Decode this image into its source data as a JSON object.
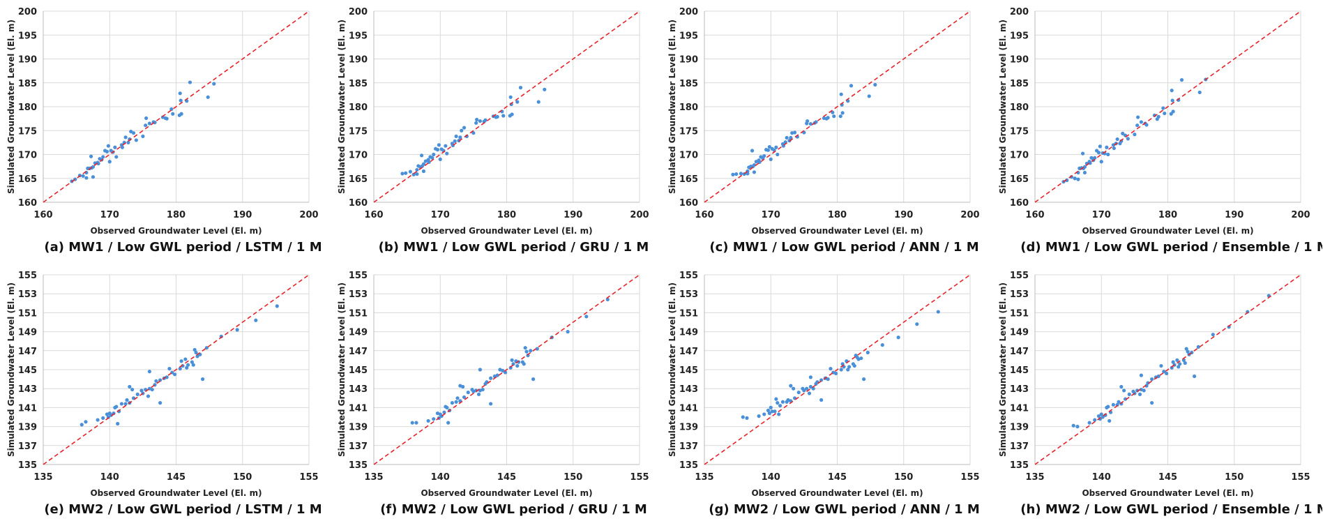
{
  "colors": {
    "points": "#4a90d9",
    "line": "#e8222a",
    "grid": "#d9d9d9"
  },
  "chart_data": [
    {
      "type": "scatter",
      "caption": "(a) MW1 / Low GWL period / LSTM / 1 M",
      "xlabel": "Observed Groundwater Level (El. m)",
      "ylabel": "Simulated Groundwater Level (El. m)",
      "xlim": [
        160,
        200
      ],
      "ylim": [
        160,
        200
      ],
      "xticks": [
        160,
        170,
        180,
        190,
        200
      ],
      "yticks": [
        160,
        165,
        170,
        175,
        180,
        185,
        190,
        195,
        200
      ],
      "reference_line": "1:1 dashed",
      "grid": true,
      "well": "MW1",
      "simulated": [
        164.4,
        164.8,
        165.6,
        165.5,
        166.2,
        165.1,
        167.1,
        167.1,
        169.6,
        167.2,
        167.4,
        165.3,
        168.2,
        168.3,
        168.1,
        169.1,
        168.9,
        169.5,
        170.8,
        170.6,
        171.8,
        168.5,
        170.8,
        170.5,
        171.5,
        169.5,
        172.0,
        171.5,
        172.5,
        173.6,
        172.5,
        173.2,
        174.8,
        174.5,
        173.0,
        173.8,
        176.1,
        177.6,
        176.5,
        176.8,
        176.7,
        177.8,
        177.6,
        177.5,
        179.5,
        178.5,
        178.2,
        182.8,
        181.3,
        178.5,
        181.2,
        185.1,
        182.0,
        184.8
      ]
    },
    {
      "type": "scatter",
      "caption": "(b) MW1 / Low GWL period / GRU / 1 M",
      "xlabel": "Observed Groundwater Level (El. m)",
      "ylabel": "Simulated Groundwater Level (El. m)",
      "xlim": [
        160,
        200
      ],
      "ylim": [
        160,
        200
      ],
      "xticks": [
        160,
        170,
        180,
        190,
        200
      ],
      "yticks": [
        160,
        165,
        170,
        175,
        180,
        185,
        190,
        195,
        200
      ],
      "reference_line": "1:1 dashed",
      "grid": true,
      "well": "MW1",
      "simulated": [
        166.0,
        166.1,
        166.4,
        165.8,
        166.8,
        165.9,
        167.6,
        167.4,
        169.8,
        167.6,
        168.0,
        166.5,
        168.6,
        168.9,
        168.4,
        169.5,
        169.3,
        170.0,
        171.2,
        171.0,
        172.0,
        169.0,
        171.1,
        170.8,
        171.8,
        170.2,
        172.3,
        171.9,
        172.8,
        173.8,
        172.9,
        173.6,
        175.0,
        175.6,
        173.8,
        174.5,
        176.6,
        177.3,
        177.0,
        176.9,
        177.2,
        178.0,
        177.8,
        177.9,
        179.0,
        178.1,
        178.1,
        182.0,
        180.5,
        178.4,
        181.0,
        184.0,
        181.0,
        183.6
      ]
    },
    {
      "type": "scatter",
      "caption": "(c) MW1 / Low GWL period / ANN / 1 M",
      "xlabel": "Observed Groundwater Level (El. m)",
      "ylabel": "Simulated Groundwater Level (El. m)",
      "xlim": [
        160,
        200
      ],
      "ylim": [
        160,
        200
      ],
      "xticks": [
        160,
        170,
        180,
        190,
        200
      ],
      "yticks": [
        160,
        165,
        170,
        175,
        180,
        185,
        190,
        195,
        200
      ],
      "reference_line": "1:1 dashed",
      "grid": true,
      "well": "MW1",
      "simulated": [
        165.8,
        165.9,
        166.0,
        165.9,
        166.5,
        166.0,
        167.3,
        167.5,
        170.8,
        167.5,
        167.8,
        166.3,
        168.5,
        168.8,
        168.4,
        169.5,
        169.2,
        169.7,
        171.0,
        170.9,
        171.6,
        169.0,
        171.2,
        170.9,
        171.5,
        170.0,
        172.2,
        171.8,
        172.6,
        173.5,
        172.9,
        173.5,
        174.5,
        174.6,
        173.7,
        174.6,
        176.5,
        177.0,
        176.4,
        176.6,
        176.8,
        177.6,
        177.5,
        177.7,
        178.8,
        178.0,
        178.0,
        182.6,
        180.4,
        178.7,
        181.2,
        184.4,
        182.2,
        184.6
      ]
    },
    {
      "type": "scatter",
      "caption": "(d) MW1 / Low GWL period / Ensemble / 1 M",
      "xlabel": "Observed Groundwater Level (El. m)",
      "ylabel": "Simulated Groundwater Level (El. m)",
      "xlim": [
        160,
        200
      ],
      "ylim": [
        160,
        200
      ],
      "xticks": [
        160,
        170,
        180,
        190,
        200
      ],
      "yticks": [
        160,
        165,
        170,
        175,
        180,
        185,
        190,
        195,
        200
      ],
      "reference_line": "1:1 dashed",
      "grid": true,
      "well": "MW1",
      "simulated": [
        164.3,
        164.6,
        165.3,
        165.0,
        166.2,
        164.8,
        167.1,
        167.2,
        170.2,
        167.1,
        167.4,
        166.2,
        168.1,
        168.5,
        168.2,
        169.3,
        168.8,
        169.3,
        170.8,
        170.4,
        171.7,
        168.5,
        170.3,
        170.2,
        171.5,
        170.0,
        172.0,
        171.3,
        172.3,
        173.2,
        172.3,
        172.8,
        174.4,
        174.0,
        173.3,
        174.2,
        176.1,
        177.8,
        176.8,
        176.5,
        176.2,
        178.2,
        177.4,
        177.9,
        179.7,
        178.6,
        178.5,
        183.4,
        181.3,
        179.0,
        181.4,
        185.6,
        183.0,
        185.7
      ]
    },
    {
      "type": "scatter",
      "caption": "(e) MW2 / Low GWL period / LSTM / 1 M",
      "xlabel": "Observed Groundwater Level (El. m)",
      "ylabel": "Simulated Groundwater Level (El. m)",
      "xlim": [
        135,
        155
      ],
      "ylim": [
        135,
        155
      ],
      "xticks": [
        135,
        140,
        145,
        150,
        155
      ],
      "yticks": [
        135,
        137,
        139,
        141,
        143,
        145,
        147,
        149,
        151,
        153,
        155
      ],
      "reference_line": "1:1 dashed",
      "grid": true,
      "well": "MW2",
      "simulated": [
        139.2,
        139.5,
        139.7,
        139.9,
        140.3,
        140.0,
        140.4,
        140.2,
        140.4,
        141.0,
        141.1,
        139.3,
        140.6,
        141.4,
        141.4,
        141.8,
        143.2,
        141.5,
        142.9,
        142.0,
        142.4,
        142.8,
        142.5,
        142.9,
        142.2,
        143.0,
        144.8,
        142.9,
        143.4,
        143.8,
        141.5,
        143.9,
        144.1,
        144.2,
        145.1,
        144.7,
        144.5,
        145.1,
        145.9,
        145.4,
        146.1,
        145.2,
        145.5,
        145.8,
        145.5,
        147.1,
        146.8,
        146.4,
        146.6,
        144.0,
        147.3,
        148.5,
        149.2,
        150.2,
        151.7
      ]
    },
    {
      "type": "scatter",
      "caption": "(f) MW2 / Low GWL period / GRU / 1 M",
      "xlabel": "Observed Groundwater Level (El. m)",
      "ylabel": "Simulated Groundwater Level (El. m)",
      "xlim": [
        135,
        155
      ],
      "ylim": [
        135,
        155
      ],
      "xticks": [
        135,
        140,
        145,
        150,
        155
      ],
      "yticks": [
        135,
        137,
        139,
        141,
        143,
        145,
        147,
        149,
        151,
        153,
        155
      ],
      "reference_line": "1:1 dashed",
      "grid": true,
      "well": "MW2",
      "simulated": [
        139.4,
        139.4,
        139.6,
        139.8,
        140.4,
        139.9,
        140.3,
        140.1,
        140.5,
        141.1,
        141.0,
        139.4,
        140.7,
        141.5,
        141.6,
        142.0,
        143.3,
        141.7,
        143.2,
        142.1,
        142.6,
        142.9,
        142.7,
        142.8,
        142.4,
        142.8,
        145.0,
        142.9,
        143.5,
        143.7,
        141.4,
        144.1,
        144.3,
        144.4,
        145.0,
        144.9,
        144.7,
        145.2,
        146.0,
        145.6,
        145.9,
        145.4,
        145.8,
        145.8,
        145.6,
        147.3,
        146.9,
        146.5,
        147.0,
        144.0,
        147.2,
        148.4,
        149.0,
        150.6,
        152.4
      ]
    },
    {
      "type": "scatter",
      "caption": "(g) MW2 / Low GWL period / ANN / 1 M",
      "xlabel": "Observed Groundwater Level (El. m)",
      "ylabel": "Simulated Groundwater Level (El. m)",
      "xlim": [
        135,
        155
      ],
      "ylim": [
        135,
        155
      ],
      "xticks": [
        135,
        140,
        145,
        150,
        155
      ],
      "yticks": [
        135,
        137,
        139,
        141,
        143,
        145,
        147,
        149,
        151,
        153,
        155
      ],
      "reference_line": "1:1 dashed",
      "grid": true,
      "well": "MW2",
      "simulated": [
        140.0,
        139.9,
        140.1,
        140.3,
        140.7,
        140.4,
        141.0,
        140.6,
        140.6,
        141.9,
        141.5,
        140.3,
        141.2,
        141.6,
        141.6,
        141.8,
        143.3,
        141.7,
        143.0,
        142.0,
        142.6,
        143.0,
        142.8,
        143.0,
        142.5,
        143.2,
        144.2,
        143.0,
        143.5,
        143.7,
        141.8,
        143.9,
        144.1,
        144.0,
        145.1,
        144.7,
        144.6,
        145.0,
        145.6,
        145.3,
        145.9,
        145.0,
        145.3,
        145.6,
        145.4,
        146.5,
        146.3,
        146.1,
        146.2,
        144.0,
        146.8,
        147.6,
        148.4,
        149.8,
        151.1
      ]
    },
    {
      "type": "scatter",
      "caption": "(h) MW2 / Low GWL period / Ensemble / 1 M",
      "xlabel": "Observed Groundwater Level (El. m)",
      "ylabel": "Simulated Groundwater Level (El. m)",
      "xlim": [
        135,
        155
      ],
      "ylim": [
        135,
        155
      ],
      "xticks": [
        135,
        140,
        145,
        150,
        155
      ],
      "yticks": [
        135,
        137,
        139,
        141,
        143,
        145,
        147,
        149,
        151,
        153,
        155
      ],
      "reference_line": "1:1 dashed",
      "grid": true,
      "well": "MW2",
      "simulated": [
        139.1,
        139.0,
        139.4,
        139.7,
        140.1,
        139.8,
        140.3,
        140.0,
        140.2,
        141.0,
        141.1,
        139.6,
        140.5,
        141.3,
        141.3,
        141.6,
        143.2,
        141.4,
        142.8,
        141.9,
        142.4,
        142.7,
        142.5,
        142.8,
        142.4,
        142.9,
        144.4,
        142.8,
        143.3,
        143.6,
        141.5,
        144.0,
        144.2,
        144.3,
        145.4,
        144.8,
        144.6,
        145.2,
        145.8,
        145.5,
        146.0,
        145.3,
        145.6,
        146.0,
        145.7,
        147.2,
        146.9,
        146.6,
        146.8,
        144.3,
        147.4,
        148.7,
        149.5,
        151.1,
        152.8
      ]
    }
  ],
  "observed": {
    "MW1": [
      164.3,
      164.8,
      165.5,
      166.0,
      166.5,
      166.5,
      166.7,
      167.0,
      167.2,
      167.3,
      167.5,
      167.5,
      167.8,
      168.2,
      168.3,
      168.5,
      168.8,
      169.0,
      169.3,
      169.6,
      169.8,
      170.0,
      170.2,
      170.5,
      170.8,
      171.0,
      171.8,
      171.9,
      172.2,
      172.4,
      172.8,
      173.0,
      173.2,
      173.6,
      174.0,
      175.0,
      175.4,
      175.5,
      176.0,
      176.6,
      176.8,
      178.0,
      178.4,
      178.6,
      179.3,
      179.5,
      180.5,
      180.6,
      180.7,
      180.8,
      181.6,
      182.1,
      184.8,
      185.7
    ],
    "MW2": [
      137.9,
      138.2,
      139.1,
      139.5,
      139.8,
      139.9,
      140.0,
      140.1,
      140.3,
      140.4,
      140.5,
      140.6,
      140.7,
      140.9,
      141.2,
      141.3,
      141.5,
      141.5,
      141.7,
      141.8,
      142.1,
      142.4,
      142.5,
      142.7,
      142.9,
      143.0,
      143.0,
      143.2,
      143.4,
      143.5,
      143.8,
      143.8,
      144.1,
      144.3,
      144.5,
      144.7,
      144.9,
      145.3,
      145.4,
      145.5,
      145.7,
      145.8,
      145.9,
      146.2,
      146.3,
      146.4,
      146.5,
      146.6,
      146.8,
      147.0,
      147.3,
      148.4,
      149.6,
      151.0,
      152.6
    ]
  }
}
